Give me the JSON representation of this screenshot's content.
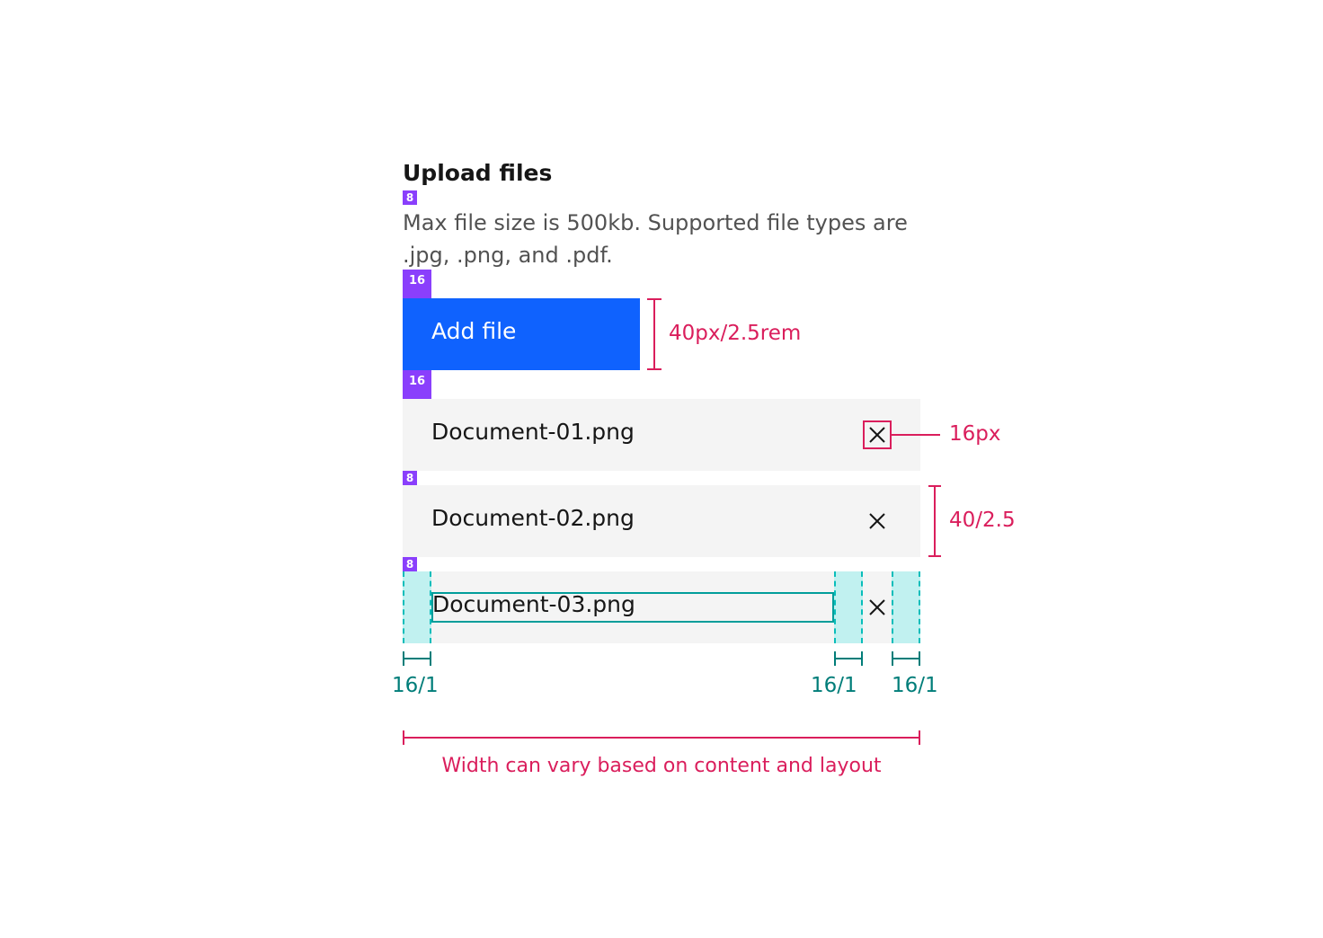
{
  "title": "Upload files",
  "description": "Max file size is 500kb. Supported file types are .jpg, .png, and .pdf.",
  "add_button": {
    "label": "Add file"
  },
  "files": [
    {
      "name": "Document-01.png"
    },
    {
      "name": "Document-02.png"
    },
    {
      "name": "Document-03.png"
    }
  ],
  "spacing_tokens": {
    "title_to_desc": "8",
    "desc_to_button": "16",
    "button_to_list": "16",
    "between_rows_1": "8",
    "between_rows_2": "8"
  },
  "annotations": {
    "button_height": "40px/2.5rem",
    "icon_size": "16px",
    "row_height": "40/2.5",
    "padding_left": "16/1",
    "padding_mid": "16/1",
    "padding_right": "16/1",
    "width_note": "Width can vary based on content and layout"
  },
  "colors": {
    "primary": "#0f62fe",
    "spacer": "#8a3ffc",
    "annotation": "#da1e5c",
    "padding": "#007d79",
    "row_bg": "#f4f4f4"
  },
  "icons": {
    "remove": "close-icon"
  }
}
